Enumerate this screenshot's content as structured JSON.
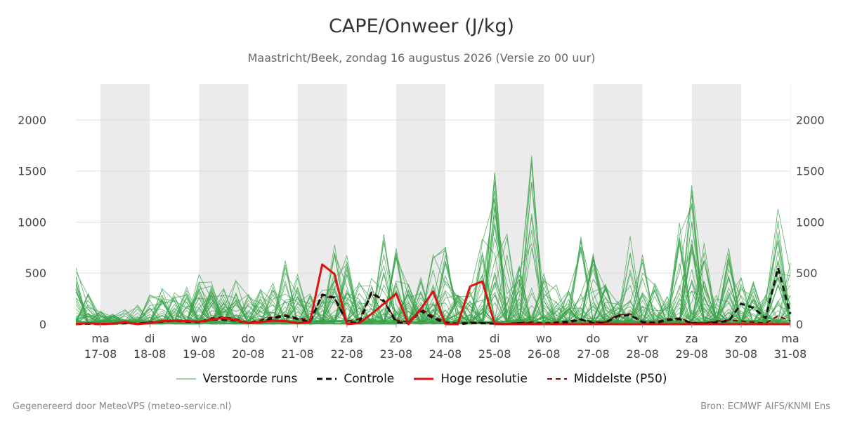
{
  "header": {
    "title": "CAPE/Onweer (J/kg)",
    "subtitle": "Maastricht/Beek, zondag 16 augustus 2026 (Versie zo 00 uur)"
  },
  "footer": {
    "left": "Gegenereerd door MeteoVPS (meteo-service.nl)",
    "right": "Bron: ECMWF AIFS/KNMI Ens"
  },
  "colors": {
    "ensemble": "#3aa34a",
    "control": "#111111",
    "hires": "#dd1111",
    "median": "#8b0000",
    "weekend_band": "#ebebeb",
    "grid": "#dddddd"
  },
  "legend": [
    {
      "key": "ensemble",
      "label": "Verstoorde runs"
    },
    {
      "key": "control",
      "label": "Controle"
    },
    {
      "key": "hires",
      "label": "Hoge resolutie"
    },
    {
      "key": "median",
      "label": "Middelste (P50)"
    }
  ],
  "chart_data": {
    "type": "line",
    "title": "CAPE/Onweer (J/kg)",
    "xlim": [
      16.5,
      31
    ],
    "ylim": [
      0,
      2350
    ],
    "yticks": [
      0,
      500,
      1000,
      1500,
      2000
    ],
    "x_ticks": [
      {
        "day": 17,
        "weekday": "ma",
        "date": "17-08"
      },
      {
        "day": 18,
        "weekday": "di",
        "date": "18-08"
      },
      {
        "day": 19,
        "weekday": "wo",
        "date": "19-08"
      },
      {
        "day": 20,
        "weekday": "do",
        "date": "20-08"
      },
      {
        "day": 21,
        "weekday": "vr",
        "date": "21-08"
      },
      {
        "day": 22,
        "weekday": "za",
        "date": "22-08"
      },
      {
        "day": 23,
        "weekday": "zo",
        "date": "23-08"
      },
      {
        "day": 24,
        "weekday": "ma",
        "date": "24-08"
      },
      {
        "day": 25,
        "weekday": "di",
        "date": "25-08"
      },
      {
        "day": 26,
        "weekday": "wo",
        "date": "26-08"
      },
      {
        "day": 27,
        "weekday": "do",
        "date": "27-08"
      },
      {
        "day": 28,
        "weekday": "vr",
        "date": "28-08"
      },
      {
        "day": 29,
        "weekday": "za",
        "date": "29-08"
      },
      {
        "day": 30,
        "weekday": "zo",
        "date": "30-08"
      },
      {
        "day": 31,
        "weekday": "ma",
        "date": "31-08"
      }
    ],
    "shaded_bands": [
      [
        17,
        18
      ],
      [
        19,
        20
      ],
      [
        21,
        22
      ],
      [
        23,
        24
      ],
      [
        25,
        26
      ],
      [
        27,
        28
      ],
      [
        29,
        30
      ]
    ],
    "grid": true,
    "legend_position": "bottom",
    "series": [
      {
        "name": "Hoge resolutie",
        "style": "solid",
        "points": [
          [
            16.5,
            0
          ],
          [
            16.75,
            10
          ],
          [
            17,
            0
          ],
          [
            17.25,
            5
          ],
          [
            17.5,
            20
          ],
          [
            17.75,
            0
          ],
          [
            18,
            10
          ],
          [
            18.25,
            30
          ],
          [
            18.5,
            35
          ],
          [
            18.75,
            30
          ],
          [
            19,
            25
          ],
          [
            19.25,
            45
          ],
          [
            19.5,
            60
          ],
          [
            19.75,
            40
          ],
          [
            20,
            10
          ],
          [
            20.25,
            20
          ],
          [
            20.5,
            35
          ],
          [
            20.75,
            30
          ],
          [
            21,
            10
          ],
          [
            21.25,
            20
          ],
          [
            21.5,
            585
          ],
          [
            21.75,
            490
          ],
          [
            22,
            0
          ],
          [
            22.25,
            10
          ],
          [
            22.5,
            100
          ],
          [
            22.75,
            200
          ],
          [
            23,
            300
          ],
          [
            23.25,
            0
          ],
          [
            23.5,
            150
          ],
          [
            23.75,
            320
          ],
          [
            24,
            0
          ],
          [
            24.25,
            0
          ],
          [
            24.5,
            370
          ],
          [
            24.75,
            420
          ],
          [
            25,
            0
          ],
          [
            25.25,
            0
          ],
          [
            25.5,
            0
          ],
          [
            25.75,
            0
          ],
          [
            26,
            0
          ],
          [
            26.25,
            0
          ],
          [
            26.5,
            0
          ],
          [
            26.75,
            0
          ],
          [
            27,
            0
          ],
          [
            27.25,
            0
          ],
          [
            27.5,
            0
          ],
          [
            27.75,
            0
          ],
          [
            28,
            0
          ],
          [
            28.25,
            0
          ],
          [
            28.5,
            0
          ],
          [
            28.75,
            0
          ],
          [
            29,
            0
          ],
          [
            29.25,
            0
          ],
          [
            29.5,
            0
          ],
          [
            29.75,
            0
          ],
          [
            30,
            0
          ],
          [
            30.25,
            0
          ],
          [
            30.5,
            0
          ],
          [
            30.75,
            0
          ],
          [
            31,
            0
          ]
        ]
      },
      {
        "name": "Controle",
        "style": "dashed",
        "points": [
          [
            16.5,
            0
          ],
          [
            16.75,
            5
          ],
          [
            17,
            0
          ],
          [
            17.25,
            5
          ],
          [
            17.5,
            10
          ],
          [
            17.75,
            5
          ],
          [
            18,
            15
          ],
          [
            18.25,
            25
          ],
          [
            18.5,
            35
          ],
          [
            18.75,
            25
          ],
          [
            19,
            20
          ],
          [
            19.25,
            45
          ],
          [
            19.5,
            45
          ],
          [
            19.75,
            35
          ],
          [
            20,
            10
          ],
          [
            20.25,
            20
          ],
          [
            20.5,
            60
          ],
          [
            20.75,
            80
          ],
          [
            21,
            50
          ],
          [
            21.25,
            20
          ],
          [
            21.5,
            290
          ],
          [
            21.75,
            260
          ],
          [
            22,
            20
          ],
          [
            22.25,
            10
          ],
          [
            22.5,
            310
          ],
          [
            22.75,
            230
          ],
          [
            23,
            20
          ],
          [
            23.25,
            10
          ],
          [
            23.5,
            130
          ],
          [
            23.75,
            60
          ],
          [
            24,
            10
          ],
          [
            24.25,
            0
          ],
          [
            24.5,
            10
          ],
          [
            24.75,
            10
          ],
          [
            25,
            5
          ],
          [
            25.25,
            0
          ],
          [
            25.5,
            10
          ],
          [
            25.75,
            5
          ],
          [
            26,
            0
          ],
          [
            26.25,
            10
          ],
          [
            26.5,
            20
          ],
          [
            26.75,
            45
          ],
          [
            27,
            10
          ],
          [
            27.25,
            15
          ],
          [
            27.5,
            80
          ],
          [
            27.75,
            90
          ],
          [
            28,
            20
          ],
          [
            28.25,
            10
          ],
          [
            28.5,
            40
          ],
          [
            28.75,
            50
          ],
          [
            29,
            10
          ],
          [
            29.25,
            5
          ],
          [
            29.5,
            20
          ],
          [
            29.75,
            30
          ],
          [
            30,
            200
          ],
          [
            30.25,
            160
          ],
          [
            30.5,
            60
          ],
          [
            30.75,
            550
          ],
          [
            31,
            100
          ]
        ]
      },
      {
        "name": "Middelste (P50)",
        "style": "dashed",
        "points": [
          [
            16.5,
            0
          ],
          [
            16.75,
            10
          ],
          [
            17,
            5
          ],
          [
            17.25,
            10
          ],
          [
            17.5,
            20
          ],
          [
            17.75,
            5
          ],
          [
            18,
            20
          ],
          [
            18.25,
            30
          ],
          [
            18.5,
            40
          ],
          [
            18.75,
            35
          ],
          [
            19,
            25
          ],
          [
            19.25,
            60
          ],
          [
            19.5,
            70
          ],
          [
            19.75,
            50
          ],
          [
            20,
            15
          ],
          [
            20.25,
            40
          ],
          [
            20.5,
            70
          ],
          [
            20.75,
            90
          ],
          [
            21,
            60
          ],
          [
            21.25,
            40
          ],
          [
            21.5,
            280
          ],
          [
            21.75,
            250
          ],
          [
            22,
            30
          ],
          [
            22.25,
            50
          ],
          [
            22.5,
            300
          ],
          [
            22.75,
            220
          ],
          [
            23,
            40
          ],
          [
            23.25,
            20
          ],
          [
            23.5,
            150
          ],
          [
            23.75,
            80
          ],
          [
            24,
            20
          ],
          [
            24.25,
            10
          ],
          [
            24.5,
            20
          ],
          [
            24.75,
            15
          ],
          [
            25,
            10
          ],
          [
            25.25,
            5
          ],
          [
            25.5,
            15
          ],
          [
            25.75,
            20
          ],
          [
            26,
            10
          ],
          [
            26.25,
            20
          ],
          [
            26.5,
            30
          ],
          [
            26.75,
            50
          ],
          [
            27,
            20
          ],
          [
            27.25,
            20
          ],
          [
            27.5,
            90
          ],
          [
            27.75,
            100
          ],
          [
            28,
            20
          ],
          [
            28.25,
            20
          ],
          [
            28.5,
            50
          ],
          [
            28.75,
            60
          ],
          [
            29,
            15
          ],
          [
            29.25,
            10
          ],
          [
            29.5,
            30
          ],
          [
            29.75,
            40
          ],
          [
            30,
            30
          ],
          [
            30.25,
            20
          ],
          [
            30.5,
            10
          ],
          [
            30.75,
            80
          ],
          [
            31,
            30
          ]
        ]
      }
    ]
  }
}
